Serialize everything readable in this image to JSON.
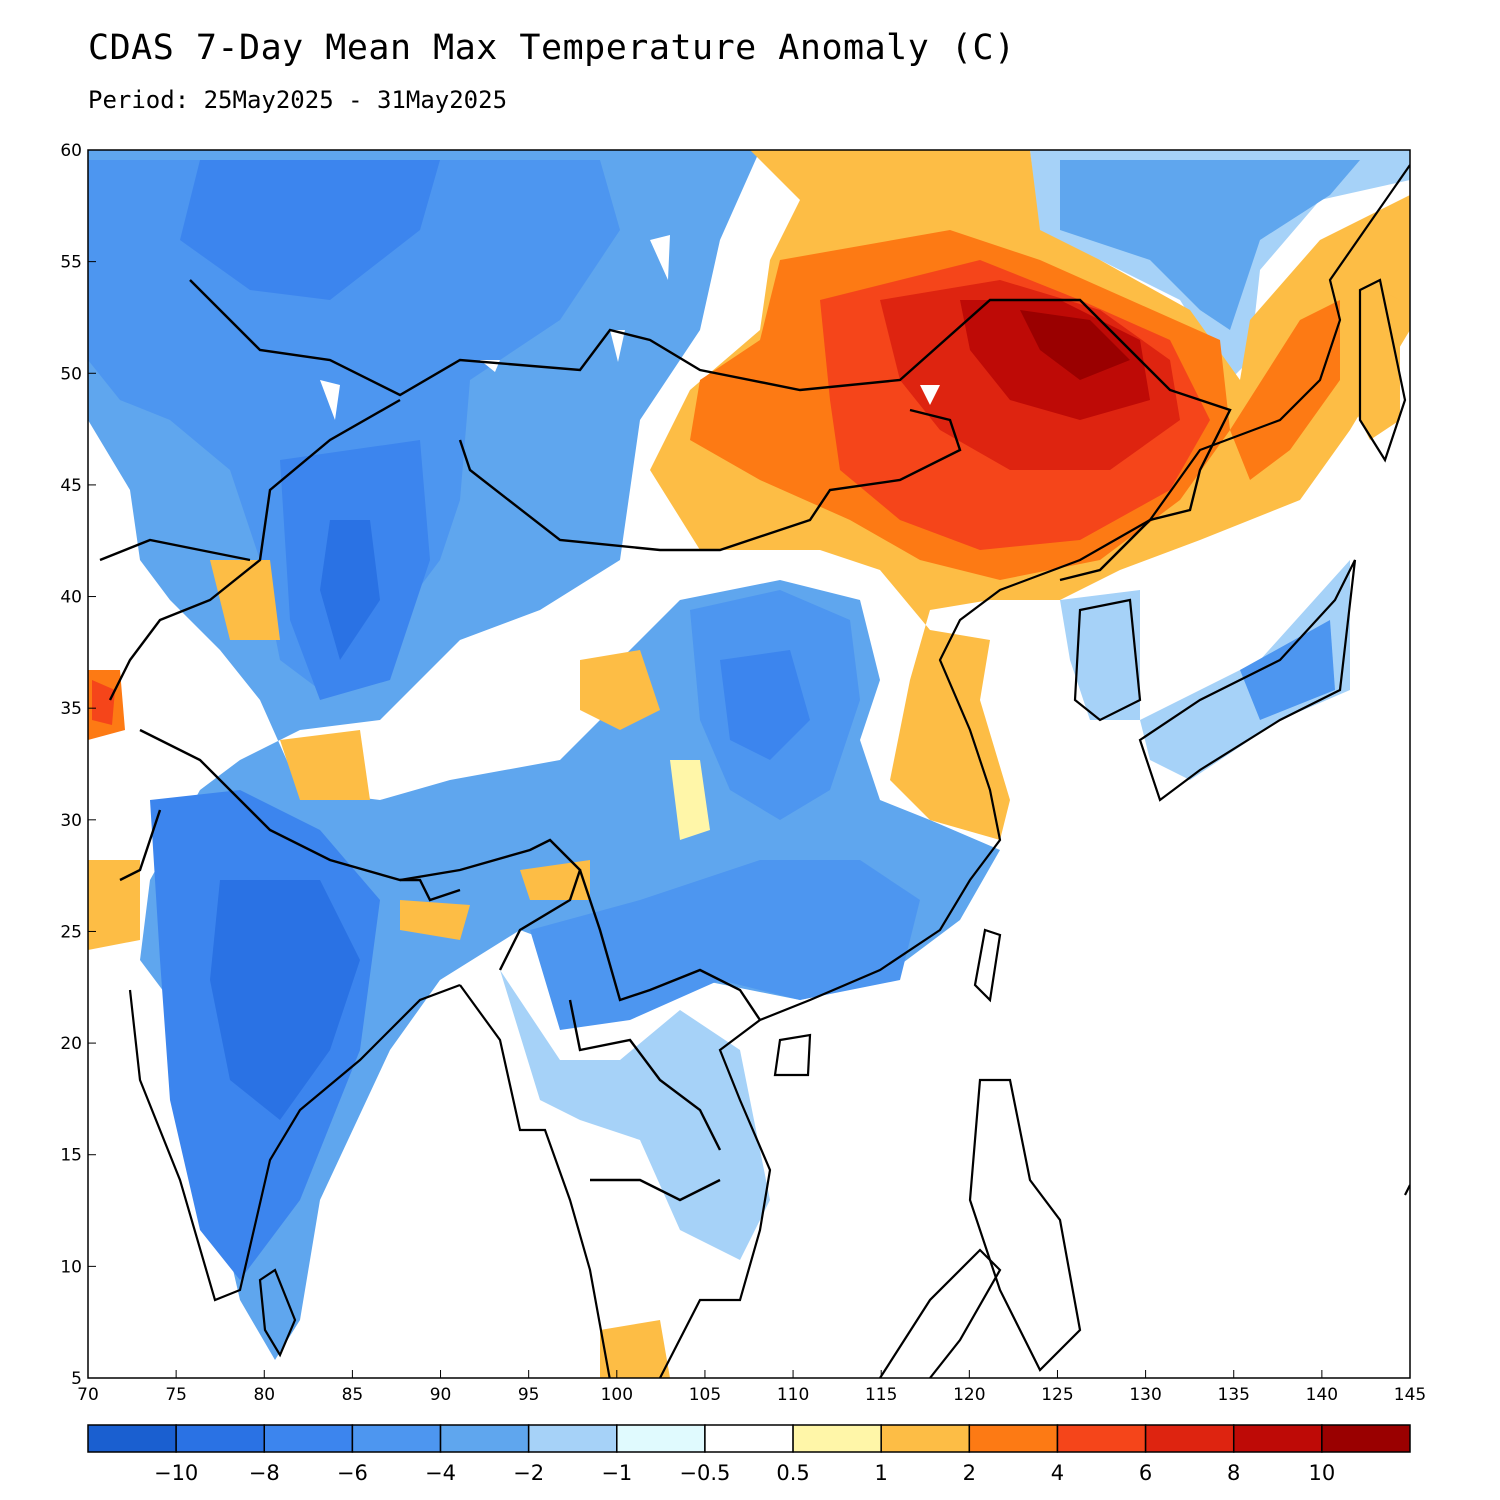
{
  "header": {
    "title": "CDAS 7-Day Mean Max Temperature Anomaly (C)",
    "period": "Period: 25May2025 - 31May2025"
  },
  "map": {
    "lon_range": [
      70,
      145
    ],
    "lat_range": [
      5,
      60
    ],
    "lon_ticks": [
      "70",
      "75",
      "80",
      "85",
      "90",
      "95",
      "100",
      "105",
      "110",
      "115",
      "120",
      "125",
      "130",
      "135",
      "140",
      "145"
    ],
    "lat_ticks": [
      "60",
      "55",
      "50",
      "45",
      "40",
      "35",
      "30",
      "25",
      "20",
      "15",
      "10",
      "5"
    ]
  },
  "colorbar": {
    "colors": [
      "#1a5fd0",
      "#2a72e4",
      "#3c85ee",
      "#4d96f0",
      "#5fa6ee",
      "#a6d2f8",
      "#e0fafe",
      "#ffffff",
      "#fff6a8",
      "#fdbd45",
      "#fd7a14",
      "#f5451a",
      "#de2410",
      "#be0a06",
      "#9a0000"
    ],
    "labels": [
      "−10",
      "−8",
      "−6",
      "−4",
      "−2",
      "−1",
      "−0.5",
      "0.5",
      "1",
      "2",
      "4",
      "6",
      "8",
      "10"
    ]
  }
}
